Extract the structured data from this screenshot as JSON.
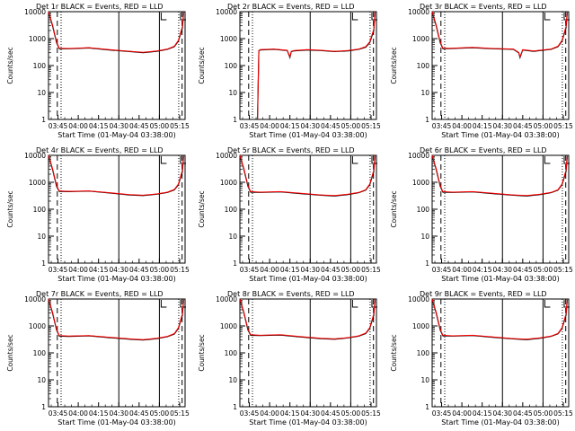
{
  "common": {
    "xlabel": "Start Time (01-May-04 03:38:00)",
    "ylabel": "Counts/sec",
    "x_tick_labels": [
      "03:45",
      "04:00",
      "04:15",
      "04:30",
      "04:45",
      "05:00",
      "05:15"
    ],
    "x_tick_minutes": [
      7,
      22,
      37,
      52,
      67,
      82,
      97
    ],
    "y_tick_labels": [
      "1",
      "10",
      "100",
      "1000",
      "10000"
    ],
    "y_scale": "log",
    "ylim": [
      1,
      10000
    ],
    "xlim_minutes_after_start": [
      0,
      101
    ],
    "colors": {
      "events": "#000000",
      "lld": "#ff0000"
    },
    "marker_lines": {
      "dashed_minutes": [
        6.5,
        98.8
      ],
      "dotted_minutes": [
        9.3,
        96.3
      ],
      "solid_minutes": [
        52,
        82
      ]
    }
  },
  "chart_data": [
    {
      "type": "line",
      "title": "Det 1r BLACK = Events, RED = LLD",
      "series": [
        {
          "name": "Events",
          "color": "#000000",
          "x": [
            0,
            3,
            6,
            8,
            15,
            30,
            45,
            60,
            70,
            80,
            88,
            93,
            96,
            99,
            100
          ],
          "y": [
            10000,
            3000,
            700,
            420,
            420,
            450,
            380,
            330,
            300,
            340,
            400,
            500,
            800,
            2500,
            10000
          ]
        },
        {
          "name": "LLD",
          "color": "#ff0000",
          "x": [
            0,
            3,
            6,
            8,
            15,
            30,
            45,
            60,
            70,
            80,
            88,
            93,
            96,
            99,
            100
          ],
          "y": [
            10000,
            3200,
            750,
            440,
            430,
            460,
            390,
            340,
            310,
            350,
            410,
            520,
            850,
            2800,
            10000
          ]
        }
      ]
    },
    {
      "type": "line",
      "title": "Det 2r BLACK = Events, RED = LLD",
      "series": [
        {
          "name": "Events",
          "color": "#000000",
          "x": [
            13,
            14,
            15,
            25,
            35,
            37,
            38,
            40,
            50,
            60,
            70,
            80,
            88,
            93,
            96,
            99,
            100
          ],
          "y": [
            1,
            350,
            380,
            400,
            360,
            200,
            330,
            350,
            380,
            360,
            330,
            350,
            400,
            480,
            700,
            2000,
            10000
          ]
        },
        {
          "name": "LLD",
          "color": "#ff0000",
          "x": [
            13,
            14,
            15,
            25,
            35,
            37,
            38,
            40,
            50,
            60,
            70,
            80,
            88,
            93,
            96,
            99,
            100
          ],
          "y": [
            1,
            360,
            390,
            410,
            370,
            210,
            340,
            360,
            390,
            370,
            340,
            360,
            410,
            500,
            750,
            2200,
            10000
          ]
        }
      ]
    },
    {
      "type": "line",
      "title": "Det 3r BLACK = Events, RED = LLD",
      "series": [
        {
          "name": "Events",
          "color": "#000000",
          "x": [
            0,
            3,
            6,
            8,
            15,
            30,
            45,
            60,
            64,
            65,
            67,
            75,
            88,
            93,
            96,
            99,
            100
          ],
          "y": [
            10000,
            3000,
            700,
            420,
            430,
            460,
            420,
            400,
            300,
            200,
            380,
            340,
            400,
            500,
            800,
            2500,
            10000
          ]
        },
        {
          "name": "LLD",
          "color": "#ff0000",
          "x": [
            0,
            3,
            6,
            8,
            15,
            30,
            45,
            60,
            64,
            65,
            67,
            75,
            88,
            93,
            96,
            99,
            100
          ],
          "y": [
            10000,
            3200,
            750,
            440,
            440,
            470,
            430,
            410,
            310,
            210,
            390,
            350,
            410,
            520,
            850,
            2800,
            10000
          ]
        }
      ]
    },
    {
      "type": "line",
      "title": "Det 4r BLACK = Events, RED = LLD",
      "series": [
        {
          "name": "Events",
          "color": "#000000",
          "x": [
            0,
            3,
            6,
            8,
            15,
            30,
            45,
            60,
            70,
            80,
            88,
            93,
            96,
            99,
            100
          ],
          "y": [
            10000,
            3000,
            700,
            460,
            450,
            470,
            400,
            340,
            320,
            360,
            420,
            520,
            800,
            2500,
            10000
          ]
        },
        {
          "name": "LLD",
          "color": "#ff0000",
          "x": [
            0,
            3,
            6,
            8,
            15,
            30,
            45,
            60,
            70,
            80,
            88,
            93,
            96,
            99,
            100
          ],
          "y": [
            10000,
            3200,
            750,
            480,
            460,
            480,
            410,
            350,
            330,
            370,
            430,
            540,
            850,
            2800,
            10000
          ]
        }
      ]
    },
    {
      "type": "line",
      "title": "Det 5r BLACK = Events, RED = LLD",
      "series": [
        {
          "name": "Events",
          "color": "#000000",
          "x": [
            0,
            3,
            6,
            8,
            15,
            30,
            45,
            60,
            70,
            80,
            88,
            93,
            96,
            99,
            100
          ],
          "y": [
            10000,
            3000,
            700,
            430,
            420,
            440,
            380,
            330,
            310,
            350,
            410,
            510,
            800,
            2500,
            10000
          ]
        },
        {
          "name": "LLD",
          "color": "#ff0000",
          "x": [
            0,
            3,
            6,
            8,
            15,
            30,
            45,
            60,
            70,
            80,
            88,
            93,
            96,
            99,
            100
          ],
          "y": [
            10000,
            3200,
            750,
            450,
            430,
            450,
            390,
            340,
            320,
            360,
            420,
            530,
            850,
            2800,
            10000
          ]
        }
      ]
    },
    {
      "type": "line",
      "title": "Det 6r BLACK = Events, RED = LLD",
      "series": [
        {
          "name": "Events",
          "color": "#000000",
          "x": [
            0,
            3,
            6,
            8,
            15,
            30,
            45,
            60,
            70,
            80,
            88,
            93,
            96,
            99,
            100
          ],
          "y": [
            10000,
            3000,
            700,
            430,
            420,
            440,
            380,
            330,
            310,
            350,
            410,
            510,
            800,
            2500,
            10000
          ]
        },
        {
          "name": "LLD",
          "color": "#ff0000",
          "x": [
            0,
            3,
            6,
            8,
            15,
            30,
            45,
            60,
            70,
            80,
            88,
            93,
            96,
            99,
            100
          ],
          "y": [
            10000,
            3200,
            750,
            450,
            430,
            450,
            390,
            340,
            320,
            360,
            420,
            530,
            850,
            2800,
            10000
          ]
        }
      ]
    },
    {
      "type": "line",
      "title": "Det 7r BLACK = Events, RED = LLD",
      "series": [
        {
          "name": "Events",
          "color": "#000000",
          "x": [
            0,
            3,
            6,
            8,
            15,
            30,
            45,
            60,
            70,
            80,
            88,
            93,
            96,
            99,
            100
          ],
          "y": [
            10000,
            3000,
            700,
            420,
            410,
            430,
            370,
            320,
            300,
            340,
            400,
            500,
            800,
            2500,
            10000
          ]
        },
        {
          "name": "LLD",
          "color": "#ff0000",
          "x": [
            0,
            3,
            6,
            8,
            15,
            30,
            45,
            60,
            70,
            80,
            88,
            93,
            96,
            99,
            100
          ],
          "y": [
            10000,
            3200,
            750,
            440,
            420,
            440,
            380,
            330,
            310,
            350,
            410,
            520,
            850,
            2800,
            10000
          ]
        }
      ]
    },
    {
      "type": "line",
      "title": "Det 8r BLACK = Events, RED = LLD",
      "series": [
        {
          "name": "Events",
          "color": "#000000",
          "x": [
            0,
            3,
            6,
            8,
            15,
            30,
            45,
            60,
            70,
            80,
            88,
            93,
            96,
            99,
            100
          ],
          "y": [
            10000,
            3000,
            700,
            450,
            440,
            460,
            390,
            340,
            320,
            360,
            420,
            520,
            800,
            2500,
            10000
          ]
        },
        {
          "name": "LLD",
          "color": "#ff0000",
          "x": [
            0,
            3,
            6,
            8,
            15,
            30,
            45,
            60,
            70,
            80,
            88,
            93,
            96,
            99,
            100
          ],
          "y": [
            10000,
            3200,
            750,
            470,
            450,
            470,
            400,
            350,
            330,
            370,
            430,
            540,
            850,
            2800,
            10000
          ]
        }
      ]
    },
    {
      "type": "line",
      "title": "Det 9r BLACK = Events, RED = LLD",
      "series": [
        {
          "name": "Events",
          "color": "#000000",
          "x": [
            0,
            3,
            6,
            8,
            15,
            30,
            45,
            60,
            70,
            80,
            88,
            93,
            96,
            99,
            100
          ],
          "y": [
            10000,
            3000,
            700,
            430,
            420,
            440,
            380,
            330,
            310,
            350,
            410,
            510,
            800,
            2500,
            10000
          ]
        },
        {
          "name": "LLD",
          "color": "#ff0000",
          "x": [
            0,
            3,
            6,
            8,
            15,
            30,
            45,
            60,
            70,
            80,
            88,
            93,
            96,
            99,
            100
          ],
          "y": [
            10000,
            3200,
            750,
            450,
            430,
            450,
            390,
            340,
            320,
            360,
            420,
            530,
            850,
            2800,
            10000
          ]
        }
      ]
    }
  ]
}
